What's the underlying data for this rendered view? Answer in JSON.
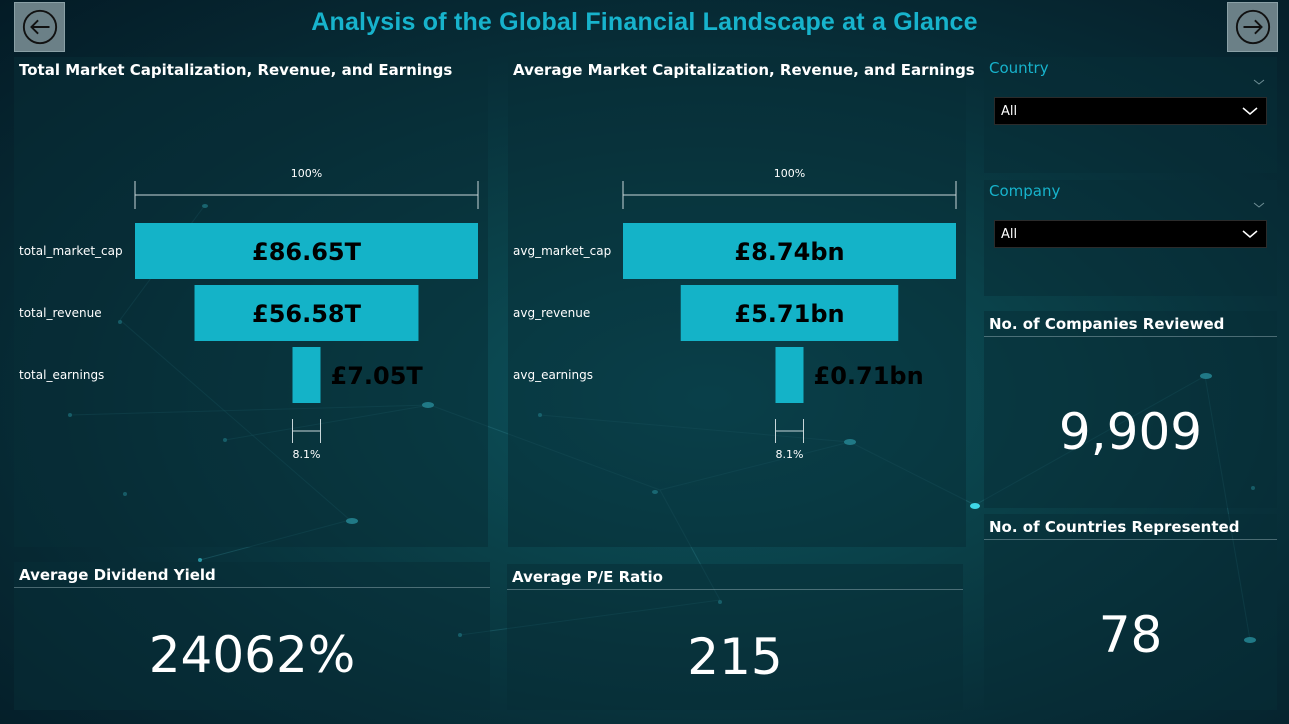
{
  "page": {
    "title": "Analysis of the Global Financial Landscape at a Glance"
  },
  "nav": {
    "back_icon": "arrow-left-circle-icon",
    "next_icon": "arrow-right-circle-icon"
  },
  "colors": {
    "accent": "#17b3cc",
    "bar": "#14b3c8",
    "text": "#ffffff",
    "value_text": "#000000"
  },
  "funnel_total": {
    "title": "Total Market Capitalization, Revenue, and Earnings",
    "top_pct_label": "100%",
    "bottom_pct_label": "8.1%"
  },
  "funnel_avg": {
    "title": "Average Market Capitalization, Revenue, and Earnings",
    "top_pct_label": "100%",
    "bottom_pct_label": "8.1%"
  },
  "chart_data": [
    {
      "type": "funnel",
      "title": "Total Market Capitalization, Revenue, and Earnings",
      "categories": [
        "total_market_cap",
        "total_revenue",
        "total_earnings"
      ],
      "values": [
        86.65,
        56.58,
        7.05
      ],
      "value_labels": [
        "£86.65T",
        "£56.58T",
        "£7.05T"
      ],
      "unit": "£ trillion"
    },
    {
      "type": "funnel",
      "title": "Average Market Capitalization, Revenue, and Earnings",
      "categories": [
        "avg_market_cap",
        "avg_revenue",
        "avg_earnings"
      ],
      "values": [
        8.74,
        5.71,
        0.71
      ],
      "value_labels": [
        "£8.74bn",
        "£5.71bn",
        "£0.71bn"
      ],
      "unit": "£ billion"
    }
  ],
  "slicers": {
    "country": {
      "label": "Country",
      "selected": "All"
    },
    "company": {
      "label": "Company",
      "selected": "All"
    }
  },
  "kpis": {
    "companies": {
      "label": "No. of Companies Reviewed",
      "value": "9,909"
    },
    "countries": {
      "label": "No. of Countries Represented",
      "value": "78"
    },
    "dividend": {
      "label": "Average Dividend Yield",
      "value": "24062%"
    },
    "pe_ratio": {
      "label": "Average P/E Ratio",
      "value": "215"
    }
  }
}
